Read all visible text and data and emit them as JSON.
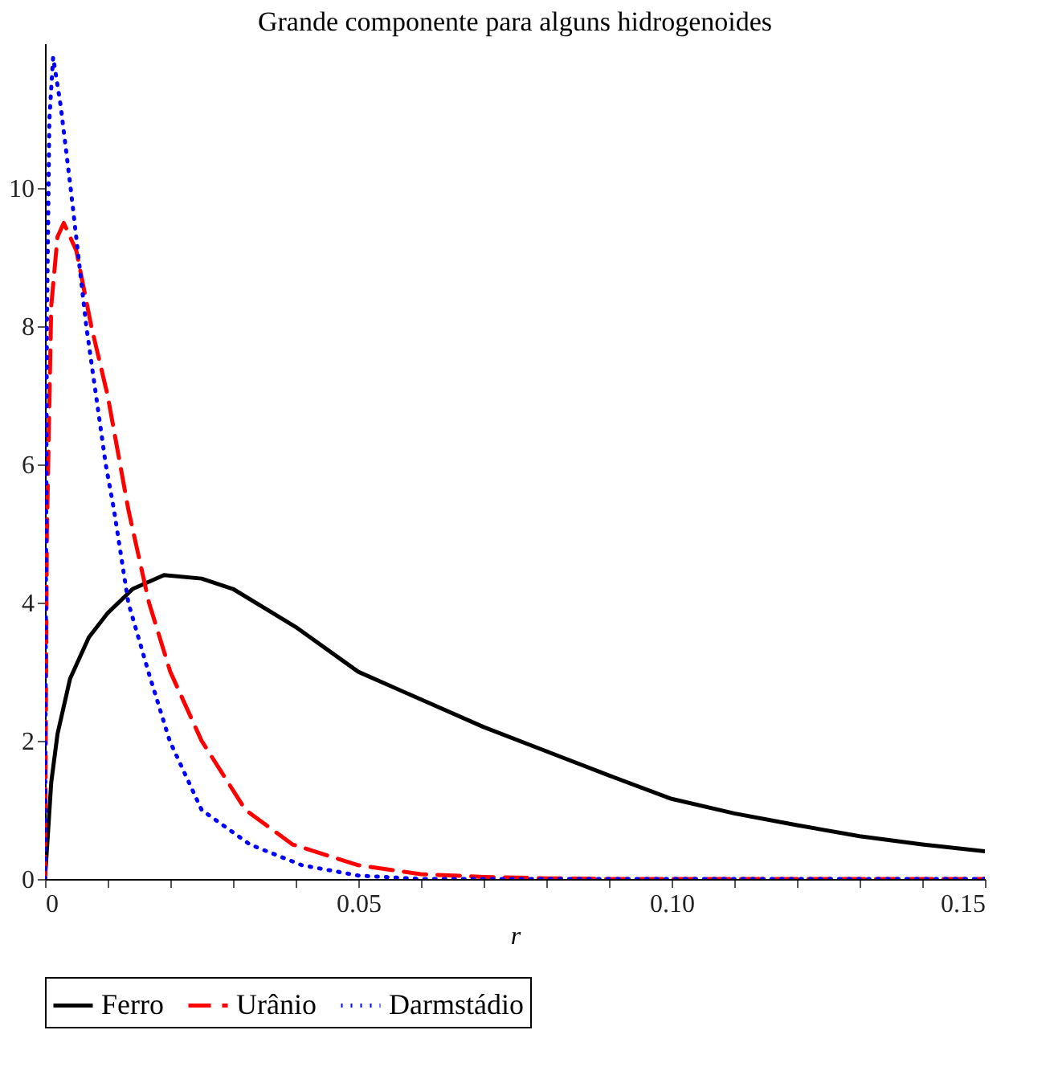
{
  "chart_data": {
    "type": "line",
    "title": "Grande componente para alguns hidrogenoides",
    "xlabel": "r",
    "xlim": [
      0,
      0.15
    ],
    "ylim": [
      0,
      12.1
    ],
    "xticks": [
      0,
      {
        "value": 0.01,
        "label": null
      },
      {
        "value": 0.02,
        "label": null
      },
      {
        "value": 0.03,
        "label": null
      },
      {
        "value": 0.04,
        "label": null
      },
      0.05,
      {
        "value": 0.06,
        "label": null
      },
      {
        "value": 0.07,
        "label": null
      },
      {
        "value": 0.08,
        "label": null
      },
      {
        "value": 0.09,
        "label": null
      },
      {
        "value": 0.1,
        "label": "0.10"
      },
      {
        "value": 0.11,
        "label": null
      },
      {
        "value": 0.12,
        "label": null
      },
      {
        "value": 0.13,
        "label": null
      },
      {
        "value": 0.14,
        "label": null
      },
      0.15
    ],
    "yticks": [
      0,
      2,
      4,
      6,
      8,
      10
    ],
    "grid": false,
    "legend": "bottom",
    "marker": "none",
    "series": [
      {
        "name": "Ferro",
        "color": "#000000",
        "line_style": "solid",
        "x": [
          0,
          0.001,
          0.002,
          0.004,
          0.007,
          0.01,
          0.014,
          0.019,
          0.025,
          0.03,
          0.04,
          0.05,
          0.06,
          0.07,
          0.08,
          0.09,
          0.1,
          0.11,
          0.12,
          0.13,
          0.14,
          0.15
        ],
        "values": [
          0,
          1.4,
          2.1,
          2.9,
          3.5,
          3.85,
          4.2,
          4.4,
          4.35,
          4.2,
          3.65,
          3.0,
          2.6,
          2.2,
          1.85,
          1.5,
          1.16,
          0.95,
          0.78,
          0.62,
          0.5,
          0.4
        ]
      },
      {
        "name": "Urânio",
        "color": "#ff0000",
        "line_style": "dashed",
        "x": [
          0,
          0.0003,
          0.001,
          0.002,
          0.003,
          0.005,
          0.0074,
          0.01,
          0.012,
          0.0133,
          0.0166,
          0.02,
          0.025,
          0.032,
          0.0395,
          0.05,
          0.06,
          0.07,
          0.08,
          0.09,
          0.15
        ],
        "values": [
          0,
          5,
          8.3,
          9.3,
          9.5,
          9.1,
          8,
          7,
          6,
          5.35,
          4,
          3,
          2,
          1,
          0.5,
          0.2,
          0.07,
          0.03,
          0.01,
          0,
          0
        ]
      },
      {
        "name": "Darmstádio",
        "color": "#0000ff",
        "line_style": "dotted",
        "x": [
          0,
          0.0003,
          0.0007,
          0.0013,
          0.0025,
          0.0041,
          0.0066,
          0.0097,
          0.011,
          0.0133,
          0.0165,
          0.0199,
          0.025,
          0.0327,
          0.041,
          0.05,
          0.06,
          0.15
        ],
        "values": [
          0,
          8,
          11,
          11.9,
          11.2,
          10,
          8,
          6,
          5.35,
          4,
          3,
          2,
          1,
          0.5,
          0.2,
          0.05,
          0,
          0
        ]
      }
    ]
  }
}
